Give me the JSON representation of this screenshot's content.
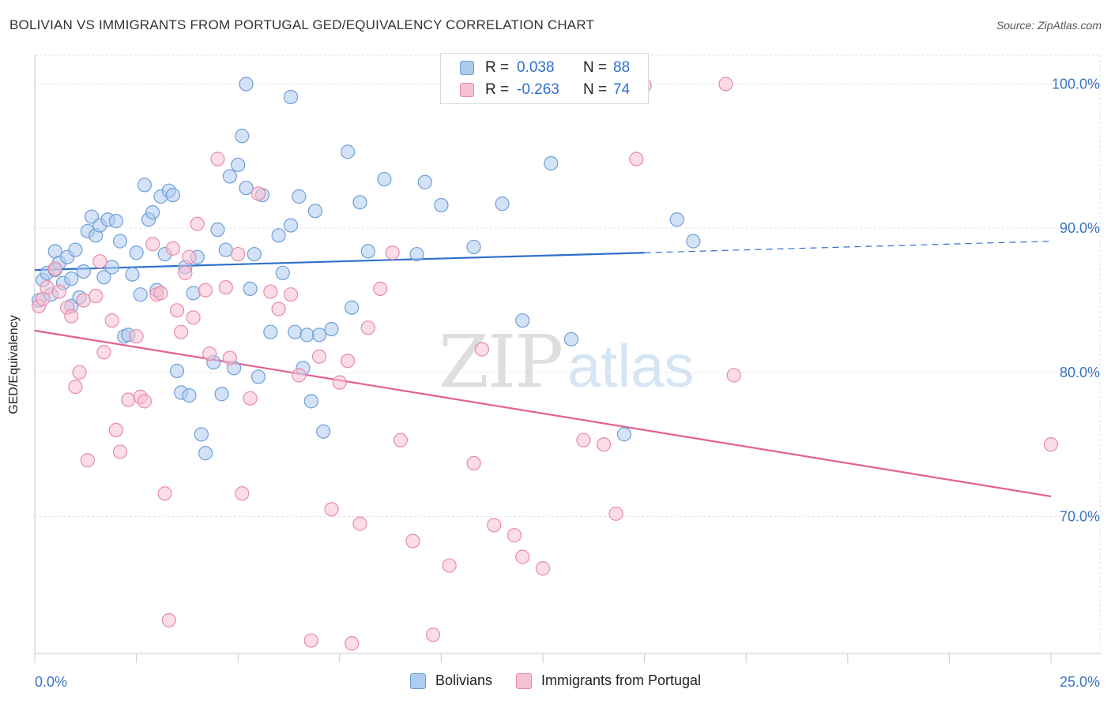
{
  "header": {
    "title": "BOLIVIAN VS IMMIGRANTS FROM PORTUGAL GED/EQUIVALENCY CORRELATION CHART",
    "source": "Source: ZipAtlas.com"
  },
  "watermark": {
    "part1": "ZIP",
    "part2": "atlas"
  },
  "legend": {
    "r_label": "R =",
    "n_label": "N =",
    "rows": [
      {
        "r": "0.038",
        "n": "88"
      },
      {
        "r": "-0.263",
        "n": "74"
      }
    ]
  },
  "colors": {
    "blue_fill": "#aecbf0",
    "blue_stroke": "#6f9fd8",
    "blue_line": "#2f6fcf",
    "pink_fill": "#f7c0d3",
    "pink_stroke": "#e88aaa",
    "pink_line": "#e4608e",
    "tick_label": "#3a73c9",
    "grid": "#e3e3e3"
  },
  "chart_data": {
    "type": "scatter",
    "title": "BOLIVIAN VS IMMIGRANTS FROM PORTUGAL GED/EQUIVALENCY CORRELATION CHART",
    "xlabel": "",
    "ylabel": "GED/Equivalency",
    "xlim": [
      0,
      25
    ],
    "ylim": [
      60.5,
      102
    ],
    "x_tick_labels": [
      "0.0%",
      "25.0%"
    ],
    "y_ticks": [
      70,
      80,
      90,
      100
    ],
    "y_tick_labels": [
      "70.0%",
      "80.0%",
      "90.0%",
      "100.0%"
    ],
    "grid": true,
    "legend_position": "bottom-center",
    "series": [
      {
        "name": "Bolivians",
        "r": 0.038,
        "n": 88,
        "trend": {
          "x": [
            0,
            15
          ],
          "y": [
            87.1,
            88.3
          ],
          "dashed_to_x": 25,
          "dashed_to_y": 89.1
        },
        "points": [
          [
            0.1,
            85.0
          ],
          [
            0.2,
            86.4
          ],
          [
            0.3,
            86.9
          ],
          [
            0.4,
            85.4
          ],
          [
            0.5,
            87.1
          ],
          [
            0.5,
            88.4
          ],
          [
            0.6,
            87.6
          ],
          [
            0.7,
            86.2
          ],
          [
            0.8,
            88.0
          ],
          [
            0.9,
            84.6
          ],
          [
            0.9,
            86.5
          ],
          [
            1.0,
            88.5
          ],
          [
            1.1,
            85.2
          ],
          [
            1.2,
            87.0
          ],
          [
            1.3,
            89.8
          ],
          [
            1.4,
            90.8
          ],
          [
            1.5,
            89.5
          ],
          [
            1.6,
            90.2
          ],
          [
            1.7,
            86.6
          ],
          [
            1.8,
            90.6
          ],
          [
            1.9,
            87.3
          ],
          [
            2.0,
            90.5
          ],
          [
            2.1,
            89.1
          ],
          [
            2.2,
            82.5
          ],
          [
            2.3,
            82.6
          ],
          [
            2.4,
            86.8
          ],
          [
            2.5,
            88.3
          ],
          [
            2.6,
            85.4
          ],
          [
            2.7,
            93.0
          ],
          [
            2.8,
            90.6
          ],
          [
            2.9,
            91.1
          ],
          [
            3.0,
            85.7
          ],
          [
            3.1,
            92.2
          ],
          [
            3.2,
            88.2
          ],
          [
            3.3,
            92.6
          ],
          [
            3.4,
            92.3
          ],
          [
            3.5,
            80.1
          ],
          [
            3.6,
            78.6
          ],
          [
            3.7,
            87.3
          ],
          [
            3.8,
            78.4
          ],
          [
            3.9,
            85.5
          ],
          [
            4.0,
            88.0
          ],
          [
            4.1,
            75.7
          ],
          [
            4.2,
            74.4
          ],
          [
            4.4,
            80.7
          ],
          [
            4.5,
            89.9
          ],
          [
            4.6,
            78.5
          ],
          [
            4.7,
            88.5
          ],
          [
            4.8,
            93.6
          ],
          [
            4.9,
            80.3
          ],
          [
            5.0,
            94.4
          ],
          [
            5.1,
            96.4
          ],
          [
            5.2,
            92.8
          ],
          [
            5.3,
            85.8
          ],
          [
            5.4,
            88.2
          ],
          [
            5.5,
            79.7
          ],
          [
            5.6,
            92.3
          ],
          [
            5.8,
            82.8
          ],
          [
            6.0,
            89.5
          ],
          [
            6.1,
            86.9
          ],
          [
            6.3,
            90.2
          ],
          [
            6.4,
            82.8
          ],
          [
            6.5,
            92.2
          ],
          [
            6.6,
            80.3
          ],
          [
            6.7,
            82.6
          ],
          [
            6.8,
            78.0
          ],
          [
            6.9,
            91.2
          ],
          [
            7.0,
            82.6
          ],
          [
            7.1,
            75.9
          ],
          [
            7.3,
            83.0
          ],
          [
            7.7,
            95.3
          ],
          [
            7.8,
            84.5
          ],
          [
            8.0,
            91.8
          ],
          [
            8.2,
            88.4
          ],
          [
            8.6,
            93.4
          ],
          [
            9.4,
            88.2
          ],
          [
            9.6,
            93.2
          ],
          [
            10.0,
            91.6
          ],
          [
            10.8,
            88.7
          ],
          [
            11.5,
            91.7
          ],
          [
            12.0,
            83.6
          ],
          [
            12.7,
            94.5
          ],
          [
            13.2,
            82.3
          ],
          [
            14.5,
            75.7
          ],
          [
            15.8,
            90.6
          ],
          [
            16.2,
            89.1
          ],
          [
            5.2,
            100.0
          ],
          [
            6.3,
            99.1
          ]
        ]
      },
      {
        "name": "Immigrants from Portugal",
        "r": -0.263,
        "n": 74,
        "trend": {
          "x": [
            0,
            25
          ],
          "y": [
            82.9,
            71.4
          ]
        },
        "points": [
          [
            0.1,
            84.6
          ],
          [
            0.2,
            85.1
          ],
          [
            0.3,
            85.9
          ],
          [
            0.5,
            87.2
          ],
          [
            0.6,
            85.6
          ],
          [
            0.8,
            84.5
          ],
          [
            0.9,
            83.9
          ],
          [
            1.0,
            79.0
          ],
          [
            1.1,
            80.0
          ],
          [
            1.2,
            85.0
          ],
          [
            1.3,
            73.9
          ],
          [
            1.5,
            85.3
          ],
          [
            1.6,
            87.7
          ],
          [
            1.7,
            81.4
          ],
          [
            1.9,
            83.6
          ],
          [
            2.0,
            76.0
          ],
          [
            2.1,
            74.5
          ],
          [
            2.3,
            78.1
          ],
          [
            2.5,
            82.5
          ],
          [
            2.6,
            78.3
          ],
          [
            2.7,
            78.0
          ],
          [
            2.9,
            88.9
          ],
          [
            3.0,
            85.4
          ],
          [
            3.1,
            85.5
          ],
          [
            3.2,
            71.6
          ],
          [
            3.3,
            62.8
          ],
          [
            3.4,
            88.6
          ],
          [
            3.5,
            84.3
          ],
          [
            3.6,
            82.8
          ],
          [
            3.7,
            86.9
          ],
          [
            3.8,
            88.0
          ],
          [
            3.9,
            83.8
          ],
          [
            4.0,
            90.3
          ],
          [
            4.2,
            85.7
          ],
          [
            4.3,
            81.3
          ],
          [
            4.5,
            94.8
          ],
          [
            4.7,
            85.9
          ],
          [
            4.8,
            81.0
          ],
          [
            5.0,
            88.2
          ],
          [
            5.1,
            71.6
          ],
          [
            5.3,
            78.2
          ],
          [
            5.5,
            92.4
          ],
          [
            5.8,
            85.6
          ],
          [
            6.0,
            84.4
          ],
          [
            6.3,
            85.4
          ],
          [
            6.5,
            79.8
          ],
          [
            6.8,
            61.4
          ],
          [
            7.0,
            81.1
          ],
          [
            7.3,
            70.5
          ],
          [
            7.5,
            79.3
          ],
          [
            7.7,
            80.8
          ],
          [
            7.8,
            61.2
          ],
          [
            8.0,
            69.5
          ],
          [
            8.2,
            83.1
          ],
          [
            8.5,
            85.8
          ],
          [
            8.8,
            88.3
          ],
          [
            9.0,
            75.3
          ],
          [
            9.3,
            68.3
          ],
          [
            9.8,
            61.8
          ],
          [
            10.2,
            66.6
          ],
          [
            10.8,
            73.7
          ],
          [
            11.0,
            81.6
          ],
          [
            11.3,
            69.4
          ],
          [
            11.8,
            68.7
          ],
          [
            12.0,
            67.2
          ],
          [
            12.5,
            66.4
          ],
          [
            13.5,
            75.3
          ],
          [
            14.0,
            75.0
          ],
          [
            14.3,
            70.2
          ],
          [
            15.0,
            99.9
          ],
          [
            17.0,
            100.0
          ],
          [
            17.2,
            79.8
          ],
          [
            25.0,
            75.0
          ],
          [
            14.8,
            94.8
          ]
        ]
      }
    ]
  },
  "bottom_legend": {
    "items": [
      "Bolivians",
      "Immigrants from Portugal"
    ]
  }
}
